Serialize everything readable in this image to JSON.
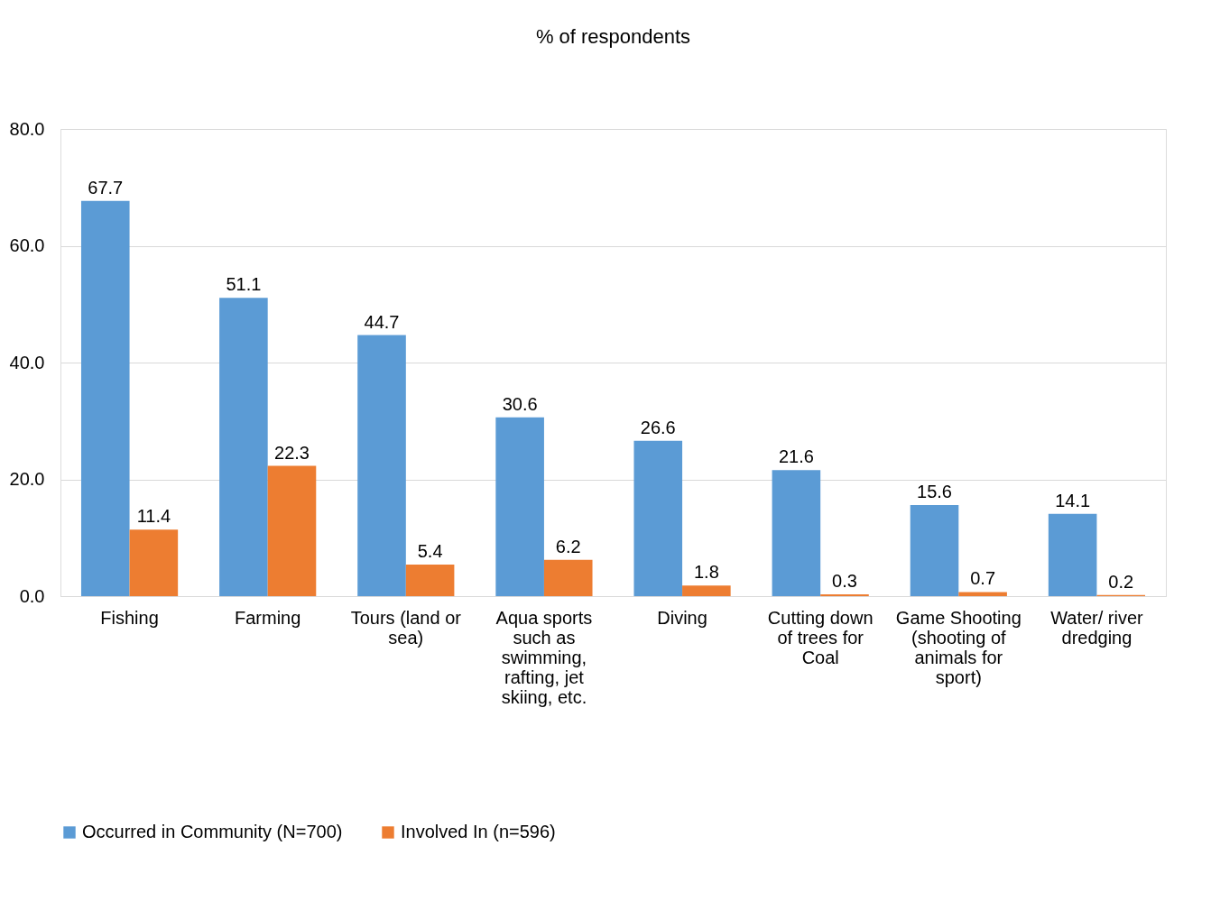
{
  "chart_data": {
    "type": "bar",
    "title": "% of respondents",
    "categories": [
      "Fishing",
      "Farming",
      "Tours (land or sea)",
      "Aqua sports such as swimming, rafting, jet skiing, etc.",
      "Diving",
      "Cutting down of trees for Coal",
      "Game Shooting (shooting of animals for sport)",
      "Water/ river dredging"
    ],
    "series": [
      {
        "name": "Occurred in Community (N=700)",
        "color": "#5b9bd5",
        "values": [
          67.7,
          51.1,
          44.7,
          30.6,
          26.6,
          21.6,
          15.6,
          14.1
        ]
      },
      {
        "name": "Involved In (n=596)",
        "color": "#ed7d31",
        "values": [
          11.4,
          22.3,
          5.4,
          6.2,
          1.8,
          0.3,
          0.7,
          0.2
        ]
      }
    ],
    "ylim": [
      0,
      80
    ],
    "yticks": [
      {
        "value": 0,
        "label": "0.0"
      },
      {
        "value": 20,
        "label": "20.0"
      },
      {
        "value": 40,
        "label": "40.0"
      },
      {
        "value": 60,
        "label": "60.0"
      },
      {
        "value": 80,
        "label": "80.0"
      }
    ],
    "grid": "y",
    "legend": "bottom",
    "data_labels": true
  }
}
